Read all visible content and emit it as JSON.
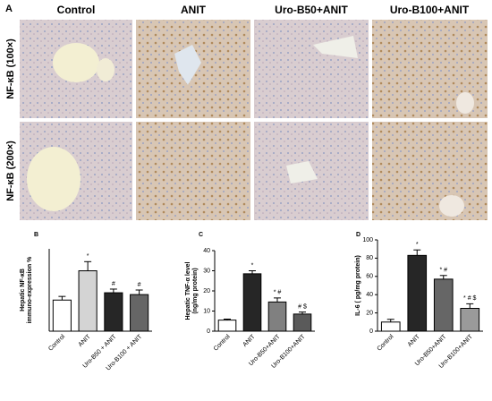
{
  "figure": {
    "panel_label": "A",
    "columns": [
      "Control",
      "ANIT",
      "Uro-B50+ANIT",
      "Uro-B100+ANIT"
    ],
    "rows": [
      "NF-κB (100×)",
      "NF-κB (200×)"
    ]
  },
  "chart_data": [
    {
      "type": "bar",
      "panel_label": "B",
      "y_label": [
        "Hepatic NF-κB",
        "immuno-expression %"
      ],
      "categories": [
        "Control",
        "ANIT",
        "Uro-B50 + ANIT",
        "Uro-B100 + ANIT"
      ],
      "values": [
        17,
        33,
        21,
        20
      ],
      "errors": [
        2,
        5,
        2,
        2.5
      ],
      "annotations": [
        null,
        "*",
        "#",
        "#"
      ],
      "colors": [
        "#ffffff",
        "#d4d4d4",
        "#262626",
        "#666666"
      ],
      "ylim": [
        0,
        45
      ]
    },
    {
      "type": "bar",
      "panel_label": "C",
      "y_label": [
        "Hepatic TNF-α level",
        "(ng/mg protein)"
      ],
      "categories": [
        "Control",
        "ANIT",
        "Uro-B50+ANIT",
        "Uro-B100+ANIT"
      ],
      "values": [
        5.5,
        28.5,
        14.5,
        8.5
      ],
      "errors": [
        0.5,
        1.5,
        2,
        1
      ],
      "annotations": [
        null,
        "*",
        "* #",
        "# $"
      ],
      "colors": [
        "#ffffff",
        "#262626",
        "#808080",
        "#5a5a5a"
      ],
      "ylim": [
        0,
        40
      ],
      "yticks": [
        0,
        10,
        20,
        30,
        40
      ]
    },
    {
      "type": "bar",
      "panel_label": "D",
      "y_label": [
        "IL-6 ( pg/mg protein)"
      ],
      "categories": [
        "Control",
        "ANIT",
        "Uro-B50+ANIT",
        "Uro-B100+ANIT"
      ],
      "values": [
        10,
        83,
        57,
        25
      ],
      "errors": [
        3,
        6,
        4,
        5
      ],
      "annotations": [
        null,
        "*",
        "* #",
        "* # $"
      ],
      "colors": [
        "#ffffff",
        "#262626",
        "#666666",
        "#9a9a9a"
      ],
      "ylim": [
        0,
        100
      ],
      "yticks": [
        0,
        20,
        40,
        60,
        80,
        100
      ]
    }
  ]
}
